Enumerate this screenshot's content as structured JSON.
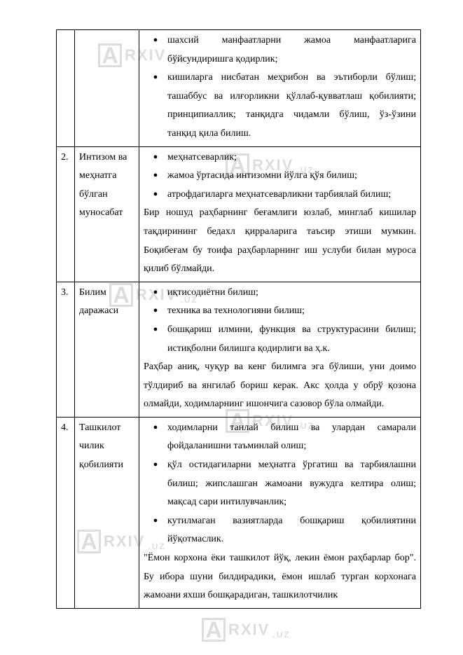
{
  "watermark": {
    "letter": "A",
    "text": "RXIV",
    "suffix": ".UZ"
  },
  "rows": [
    {
      "num": "",
      "cat": "",
      "bullets": [
        "шахсий манфаатларни жамоа манфаатларига бўйсундиришга қодирлик;",
        "кишиларга нисбатан меҳрибон ва эътиборли бўлиш; ташаббус ва илғорликни қўллаб-қувватлаш қобилияти; принципиаллик; танқидга чидамли бўлиш, ўз-ўзини танқид қила билиш."
      ],
      "tail": ""
    },
    {
      "num": "2.",
      "cat": "Интизом ва меҳнатга бўлган муносабат",
      "bullets": [
        "меҳнатсеварлик;",
        "жамоа ўртасида интизомни йўлга қўя билиш;",
        "атрофдагиларга меҳнатсеварликни тарбиялай билиш;"
      ],
      "tail": "Бир ношуд раҳбарнинг беғамлиги юзлаб, минглаб кишилар тақдирининг бедахл қирраларига таъсир этиши мумкин. Боқибеғам бу тоифа раҳбарларнинг иш услуби билан муроса қилиб бўлмайди."
    },
    {
      "num": "3.",
      "cat": "Билим даражаси",
      "bullets": [
        "иқтисодиётни билиш;",
        "техника ва технологияни билиш;",
        "бошқариш илмини, функция ва структурасини билиш; истиқболни билишга қодирлиги ва ҳ.к."
      ],
      "tail": "Раҳбар аниқ, чуқур ва кенг билимга эга бўлиши, уни доимо тўлдириб ва янгилаб бориш керак. Акс ҳолда у обрў қозона олмайди, ходимларнинг ишончига сазовор бўла олмайди."
    },
    {
      "num": "4.",
      "cat": "Ташкилот чилик қобилияти",
      "bullets": [
        "ходимларни танлай билиш ва улардан самарали фойдаланишни таъминлай олиш;",
        "қўл остидагиларни меҳнатга ўргатиш ва тарбиялашни билиш; жипслашган жамоани вужудга келтира олиш; мақсад сари интилувчанлик;",
        "кутилмаган вазиятларда бошқариш қобилиятини йўқотмаслик."
      ],
      "tail": "\"Ёмон корхона ёки ташкилот йўқ, лекин ёмон раҳбарлар бор\". Бу ибора шуни билдирадики, ёмон ишлаб турган корхонага жамоани яхши бошқарадиган, ташкилотчилик"
    }
  ]
}
